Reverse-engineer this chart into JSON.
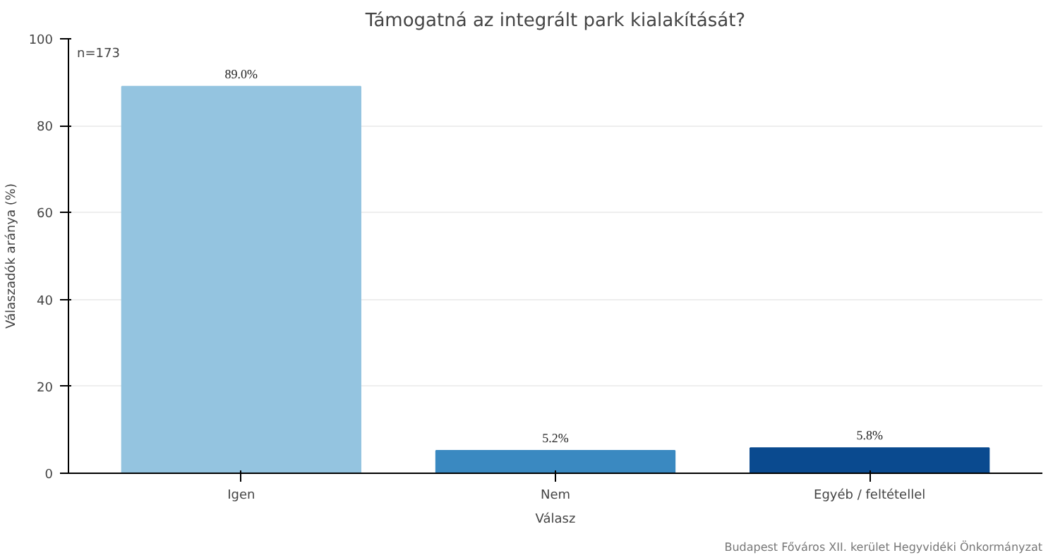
{
  "chart_data": {
    "type": "bar",
    "title": "Támogatná az integrált park kialakítását?",
    "xlabel": "Válasz",
    "ylabel": "Válaszadók aránya (%)",
    "categories": [
      "Igen",
      "Nem",
      "Egyéb / feltétellel"
    ],
    "values": [
      89.0,
      5.2,
      5.8
    ],
    "colors": [
      "#94c4e0",
      "#3a89c1",
      "#0a4a8f"
    ],
    "value_labels": [
      "89.0%",
      "5.2%",
      "5.8%"
    ],
    "ylim": [
      0,
      100
    ],
    "yticks": [
      0,
      20,
      40,
      60,
      80,
      100
    ],
    "grid": "y",
    "annotations": [
      "n=173",
      "Budapest Főváros XII. kerület Hegyvidéki Önkormányzat"
    ]
  }
}
